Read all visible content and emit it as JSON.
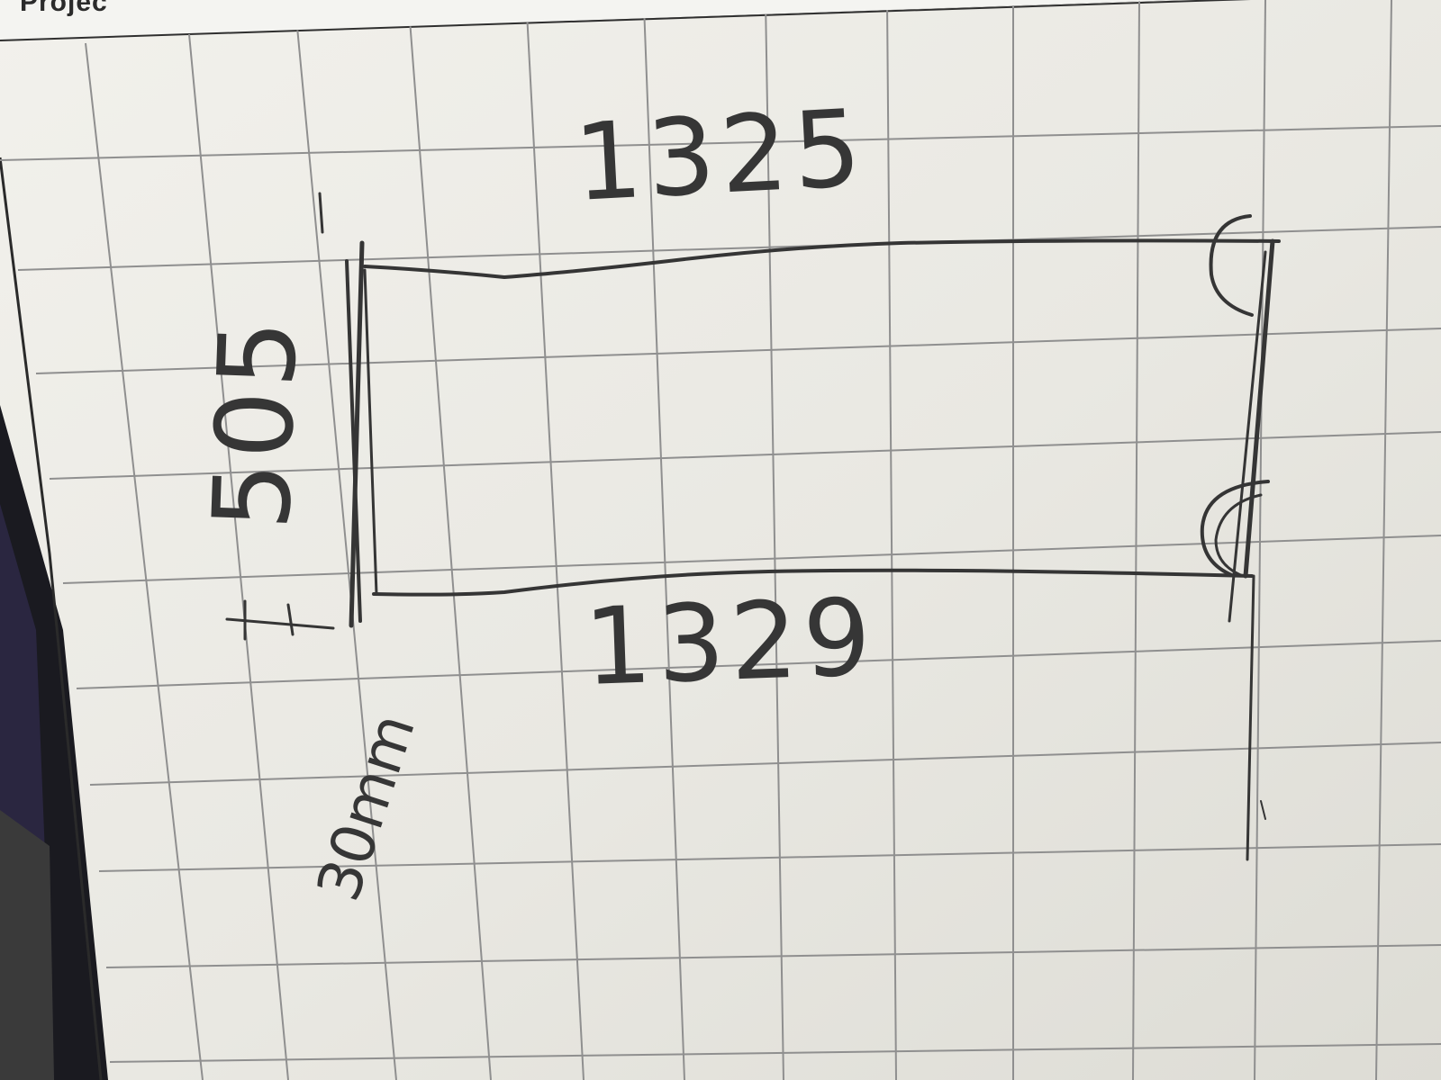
{
  "sketch": {
    "top_dimension": "1325",
    "bottom_dimension": "1329",
    "left_dimension": "505",
    "corner_note": "30mm",
    "header_fragment": "Projec"
  },
  "colors": {
    "paper": "#ecebe6",
    "grid_line": "#8f8f8f",
    "pencil": "#353535",
    "background": "#1a1a20"
  }
}
